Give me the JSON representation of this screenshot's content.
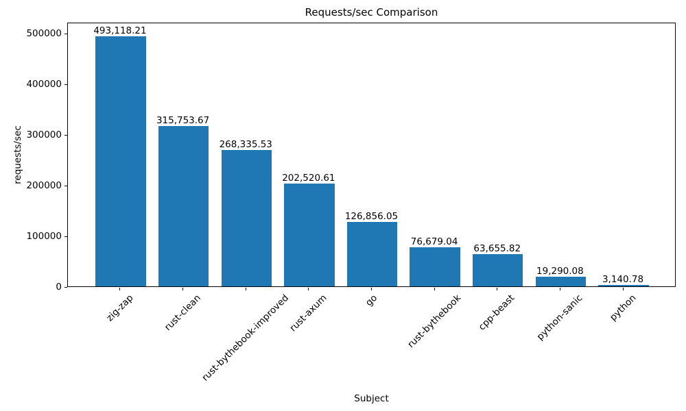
{
  "chart_data": {
    "type": "bar",
    "title": "Requests/sec Comparison",
    "xlabel": "Subject",
    "ylabel": "requests/sec",
    "categories": [
      "zig-zap",
      "rust-clean",
      "rust-bythebook-improved",
      "rust-axum",
      "go",
      "rust-bythebook",
      "cpp-beast",
      "python-sanic",
      "python"
    ],
    "values": [
      493118.21,
      315753.67,
      268335.53,
      202520.61,
      126856.05,
      76679.04,
      63655.82,
      19290.08,
      3140.78
    ],
    "value_labels": [
      "493,118.21",
      "315,753.67",
      "268,335.53",
      "202,520.61",
      "126,856.05",
      "76,679.04",
      "63,655.82",
      "19,290.08",
      "3,140.78"
    ],
    "yticks": [
      0,
      100000,
      200000,
      300000,
      400000,
      500000
    ],
    "ytick_labels": [
      "0",
      "100000",
      "200000",
      "300000",
      "400000",
      "500000"
    ],
    "ylim": [
      0,
      521622
    ],
    "xlim": [
      -0.84,
      8.84
    ],
    "bar_width": 0.8,
    "x_tick_rotation_deg": 45,
    "bar_color": "#1f77b4",
    "axis_color": "#000000",
    "text_color": "#000000",
    "grid": false,
    "legend": null
  }
}
